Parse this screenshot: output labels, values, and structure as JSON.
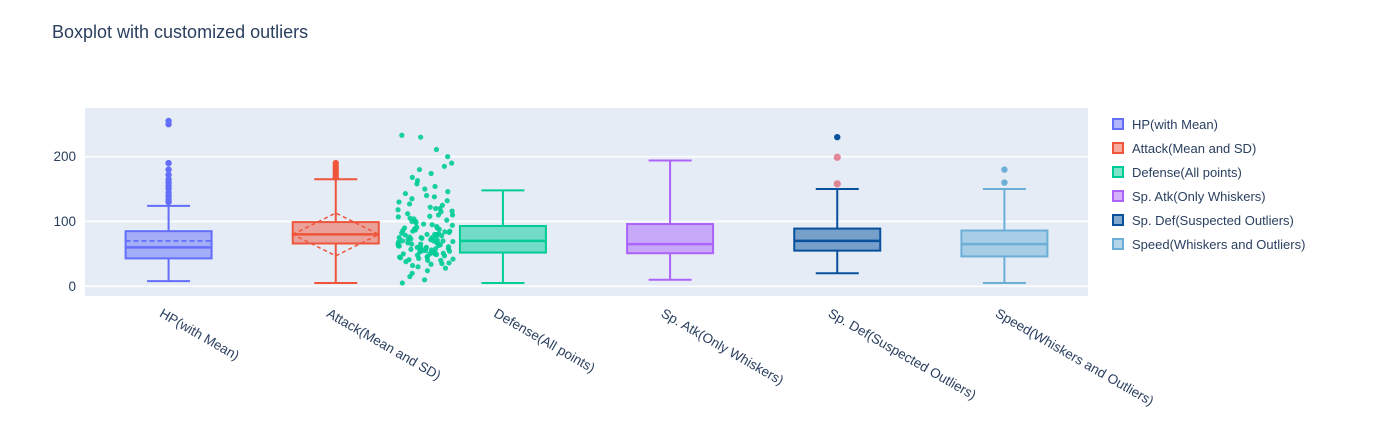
{
  "chart_data": {
    "type": "box",
    "title": "Boxplot with customized outliers",
    "ylim": [
      -15,
      275
    ],
    "yticks": [
      0,
      100,
      200
    ],
    "grid": true,
    "legend_position": "right",
    "plot_bgcolor": "#e5ecf6",
    "paper_bgcolor": "#ffffff",
    "text_color": "#2a3f5f",
    "gridline_color": "#ffffff",
    "suspected_outlier_color": "rgba(219,64,82,0.6)",
    "series": [
      {
        "name": "HP(with Mean)",
        "color": "#636efa",
        "boxpoints": "outliers",
        "mean_line": true,
        "sd_diamond": false,
        "stats": {
          "min": 8,
          "q1": 43,
          "median": 60,
          "q3": 85,
          "max": 124,
          "mean": 70
        },
        "outliers": [
          130,
          134,
          139,
          144,
          150,
          155,
          160,
          165,
          172,
          180,
          190,
          250,
          255
        ]
      },
      {
        "name": "Attack(Mean and SD)",
        "color": "#ef553b",
        "boxpoints": "outliers",
        "mean_line": true,
        "sd_diamond": true,
        "stats": {
          "min": 5,
          "q1": 66,
          "median": 80,
          "q3": 99,
          "max": 165,
          "mean": 80,
          "sd": 33
        },
        "outliers": [
          168,
          172,
          176,
          181,
          185,
          190
        ]
      },
      {
        "name": "Defense(All points)",
        "color": "#00cc96",
        "boxpoints": "all",
        "mean_line": false,
        "sd_diamond": false,
        "stats": {
          "min": 5,
          "q1": 52,
          "median": 70,
          "q3": 93,
          "max": 148
        },
        "outliers": [],
        "points": [
          5,
          10,
          15,
          20,
          24,
          28,
          30,
          32,
          34,
          35,
          36,
          38,
          40,
          40,
          41,
          42,
          43,
          44,
          45,
          45,
          46,
          47,
          48,
          49,
          50,
          50,
          50,
          51,
          52,
          52,
          53,
          54,
          55,
          55,
          55,
          56,
          57,
          58,
          58,
          59,
          60,
          60,
          60,
          61,
          62,
          62,
          63,
          64,
          65,
          65,
          65,
          66,
          67,
          68,
          68,
          69,
          70,
          70,
          70,
          71,
          72,
          72,
          73,
          74,
          75,
          75,
          75,
          76,
          77,
          78,
          79,
          80,
          80,
          80,
          81,
          82,
          83,
          84,
          85,
          85,
          86,
          87,
          88,
          89,
          90,
          90,
          91,
          92,
          94,
          95,
          96,
          98,
          100,
          100,
          102,
          104,
          105,
          107,
          108,
          110,
          110,
          112,
          115,
          116,
          118,
          120,
          120,
          122,
          125,
          127,
          130,
          132,
          135,
          138,
          140,
          143,
          146,
          150,
          154,
          158,
          163,
          168,
          174,
          180,
          185,
          190,
          200,
          211,
          230,
          233
        ]
      },
      {
        "name": "Sp. Atk(Only Whiskers)",
        "color": "#ab63fa",
        "boxpoints": "none",
        "mean_line": false,
        "sd_diamond": false,
        "stats": {
          "min": 10,
          "q1": 51,
          "median": 65,
          "q3": 96,
          "max": 194
        },
        "outliers": []
      },
      {
        "name": "Sp. Def(Suspected Outliers)",
        "color": "#08519c",
        "boxpoints": "suspectedoutliers",
        "mean_line": false,
        "sd_diamond": false,
        "stats": {
          "min": 20,
          "q1": 55,
          "median": 70,
          "q3": 89,
          "max": 150
        },
        "outliers": [
          230
        ],
        "suspected_outliers": [
          199,
          158
        ]
      },
      {
        "name": "Speed(Whiskers and Outliers)",
        "color": "#6baed6",
        "boxpoints": "outliers",
        "mean_line": false,
        "sd_diamond": false,
        "stats": {
          "min": 5,
          "q1": 46,
          "median": 65,
          "q3": 86,
          "max": 150
        },
        "outliers": [
          160,
          180
        ]
      }
    ]
  }
}
